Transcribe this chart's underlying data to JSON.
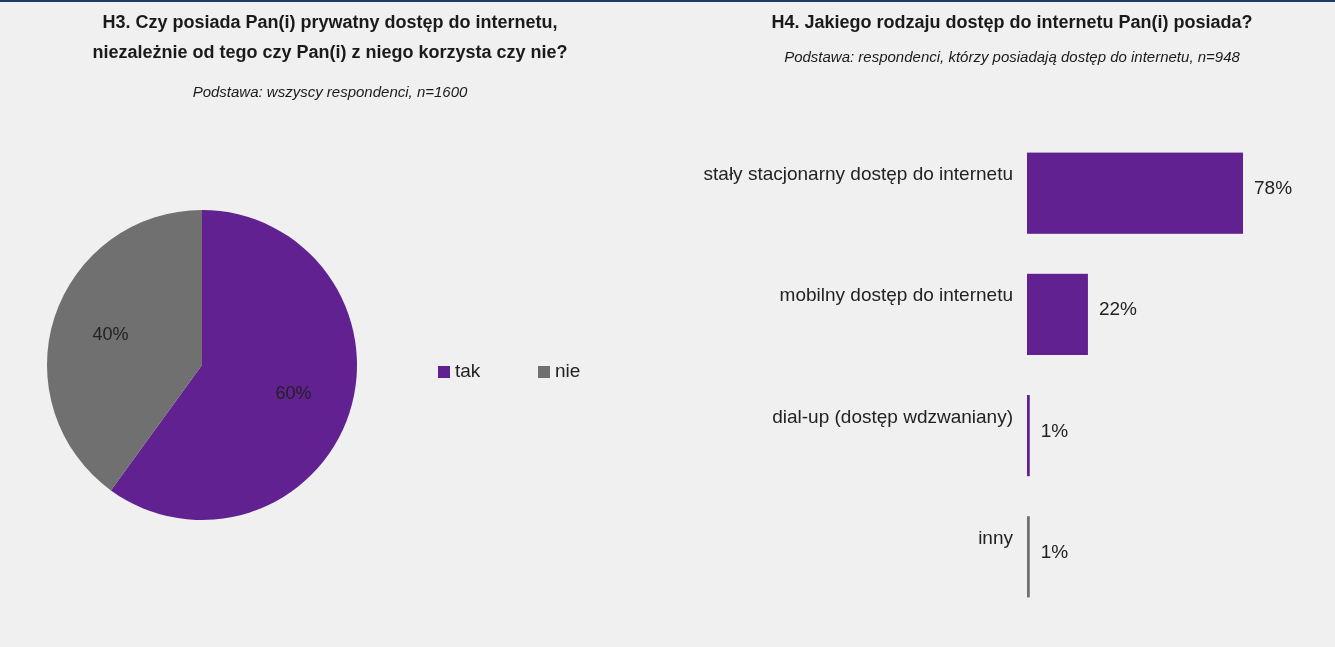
{
  "chart_data": [
    {
      "type": "pie",
      "title": "H3. Czy posiada Pan(i) prywatny dostęp do internetu,\nniezależnie od tego czy Pan(i) z niego korzysta czy nie?",
      "subtitle": "Podstawa: wszyscy respondenci, n=1600",
      "categories": [
        "tak",
        "nie"
      ],
      "values": [
        60,
        40
      ],
      "colors": [
        "#612190",
        "#707070"
      ],
      "value_labels": [
        "60%",
        "40%"
      ],
      "legend": "right"
    },
    {
      "type": "bar",
      "orientation": "horizontal",
      "title": "H4. Jakiego rodzaju dostęp do internetu Pan(i) posiada?",
      "subtitle": "Podstawa: respondenci, którzy posiadają dostęp do internetu, n=948",
      "categories": [
        "stały stacjonarny dostęp do internetu",
        "mobilny dostęp do internetu",
        "dial-up (dostęp wdzwaniany)",
        "inny"
      ],
      "values": [
        78,
        22,
        1,
        1
      ],
      "colors": [
        "#612190",
        "#612190",
        "#612190",
        "#707070"
      ],
      "data_labels": true,
      "value_labels": [
        "78%",
        "22%",
        "1%",
        "1%"
      ]
    }
  ]
}
